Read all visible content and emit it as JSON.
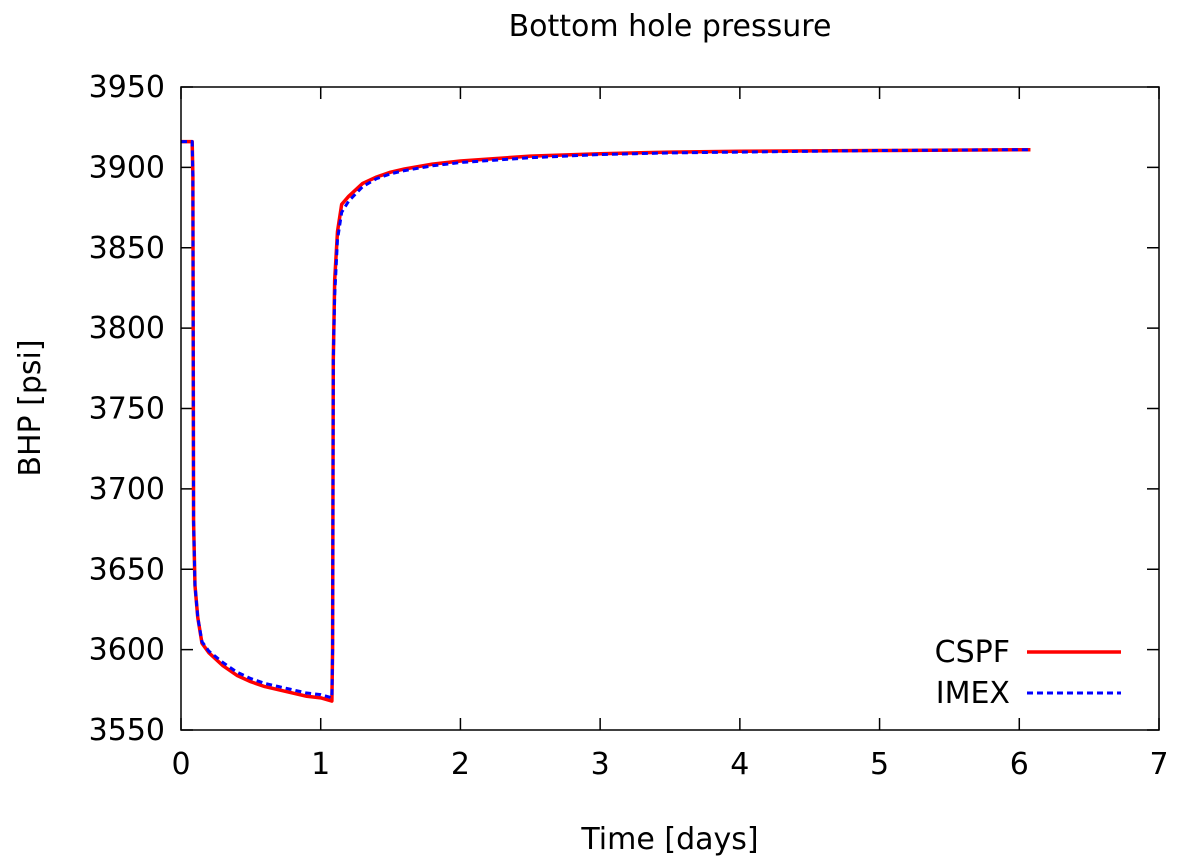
{
  "chart_data": {
    "type": "line",
    "title": "Bottom hole pressure",
    "xlabel": "Time [days]",
    "ylabel": "BHP [psi]",
    "xlim": [
      0,
      7
    ],
    "ylim": [
      3550,
      3950
    ],
    "xticks": [
      0,
      1,
      2,
      3,
      4,
      5,
      6,
      7
    ],
    "yticks": [
      3550,
      3600,
      3650,
      3700,
      3750,
      3800,
      3850,
      3900,
      3950
    ],
    "grid": false,
    "legend_position": "bottom-right",
    "series": [
      {
        "name": "CSPF",
        "color": "#ff0000",
        "style": "solid",
        "x": [
          0,
          0.08,
          0.085,
          0.09,
          0.1,
          0.12,
          0.15,
          0.2,
          0.3,
          0.4,
          0.5,
          0.6,
          0.7,
          0.8,
          0.9,
          1.0,
          1.08,
          1.085,
          1.09,
          1.1,
          1.12,
          1.15,
          1.2,
          1.3,
          1.4,
          1.5,
          1.6,
          1.8,
          2.0,
          2.5,
          3.0,
          3.5,
          4.0,
          5.0,
          6.0,
          6.08
        ],
        "y": [
          3916,
          3916,
          3895,
          3680,
          3640,
          3620,
          3604,
          3598,
          3590,
          3584,
          3580,
          3577,
          3575,
          3573,
          3571,
          3570,
          3568,
          3600,
          3780,
          3830,
          3860,
          3877,
          3882,
          3890,
          3894,
          3897,
          3899,
          3902,
          3904,
          3907,
          3908.5,
          3909.5,
          3910,
          3910.5,
          3911,
          3911
        ]
      },
      {
        "name": "IMEX",
        "color": "#0000ff",
        "style": "dashed",
        "x": [
          0,
          0.08,
          0.085,
          0.09,
          0.1,
          0.12,
          0.15,
          0.2,
          0.3,
          0.4,
          0.5,
          0.6,
          0.7,
          0.8,
          0.9,
          1.0,
          1.08,
          1.085,
          1.09,
          1.1,
          1.12,
          1.15,
          1.2,
          1.3,
          1.4,
          1.5,
          1.6,
          1.8,
          2.0,
          2.5,
          3.0,
          3.5,
          4.0,
          5.0,
          6.0,
          6.08
        ],
        "y": [
          3916,
          3916,
          3895,
          3680,
          3640,
          3620,
          3605,
          3599,
          3592,
          3586,
          3582,
          3579,
          3577,
          3575,
          3573,
          3572,
          3570,
          3600,
          3780,
          3820,
          3855,
          3872,
          3879,
          3888,
          3893,
          3896,
          3898,
          3901,
          3903,
          3906,
          3908,
          3909,
          3909.5,
          3910.5,
          3911,
          3911
        ]
      }
    ]
  }
}
